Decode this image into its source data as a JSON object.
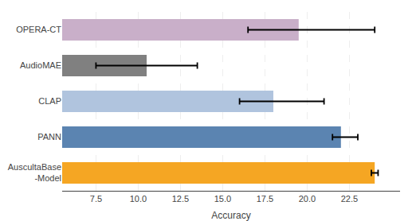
{
  "chart_data": {
    "type": "bar",
    "orientation": "horizontal",
    "categories": [
      "AuscultaBase\n-Model",
      "PANN",
      "CLAP",
      "AudioMAE",
      "OPERA-CT"
    ],
    "values": [
      24.0,
      22.0,
      18.0,
      10.5,
      19.5
    ],
    "error_low": [
      0.2,
      0.5,
      2.0,
      3.0,
      3.0
    ],
    "error_high": [
      0.2,
      1.0,
      3.0,
      3.0,
      4.5
    ],
    "colors": [
      "#f5a623",
      "#5b84b1",
      "#b0c4de",
      "#808080",
      "#c9afc9"
    ],
    "xlabel": "Accuracy",
    "xlim": [
      5.5,
      25.5
    ],
    "xticks": [
      7.5,
      {
        "value": 10.0,
        "label": "10.0"
      },
      12.5,
      {
        "value": 15.0,
        "label": "15.0"
      },
      17.5,
      {
        "value": 20.0,
        "label": "20.0"
      },
      22.5
    ],
    "grid": true
  }
}
